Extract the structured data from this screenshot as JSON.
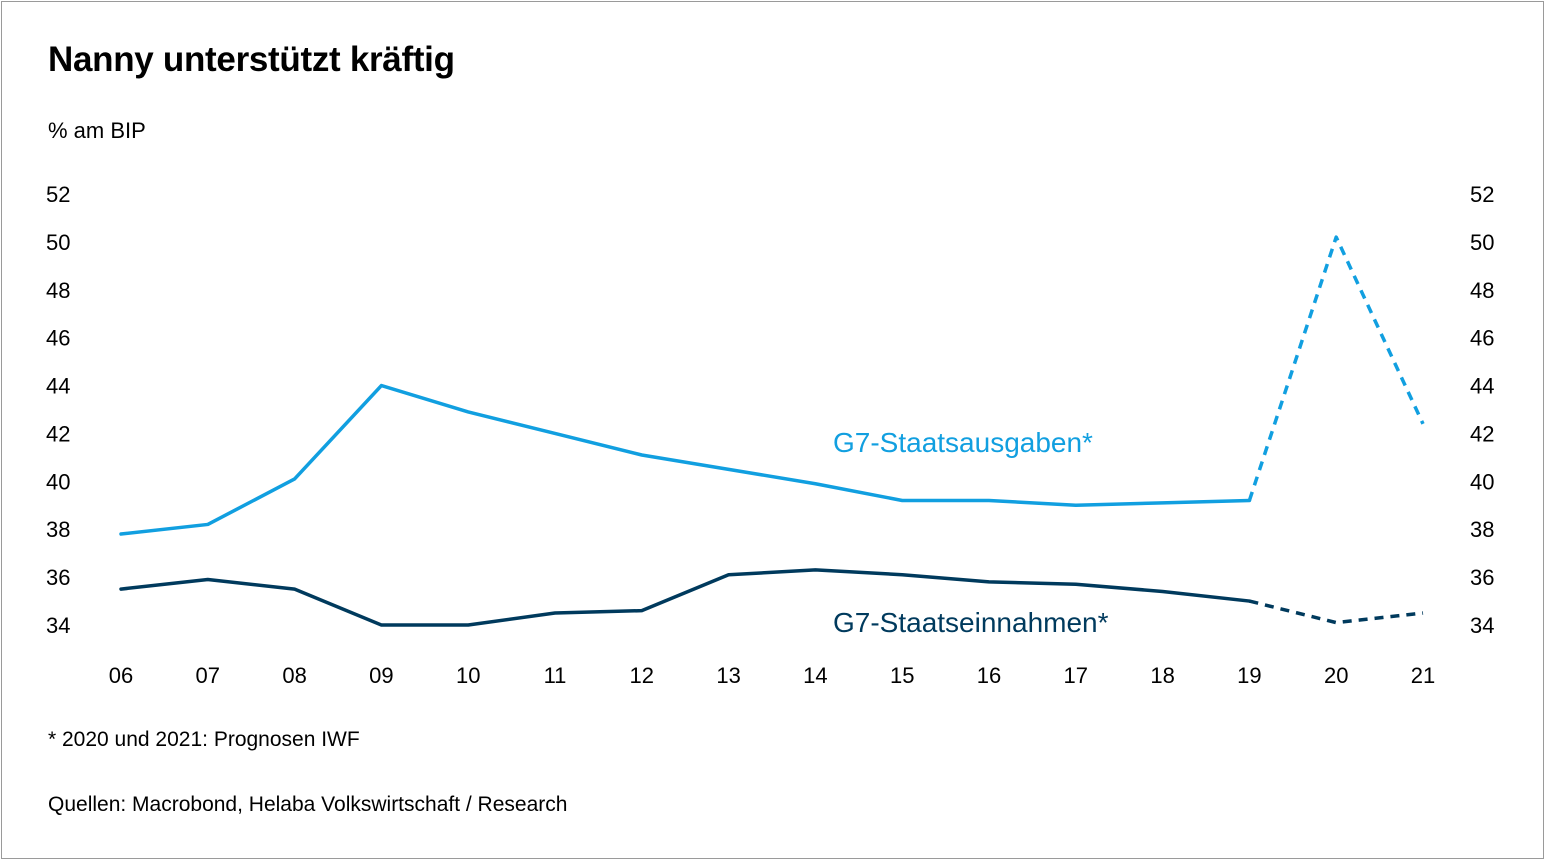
{
  "title": "Nanny unterstützt kräftig",
  "unit_label": "% am BIP",
  "footnote": "* 2020 und 2021: Prognosen IWF",
  "source": "Quellen: Macrobond, Helaba Volkswirtschaft / Research",
  "chart_data": {
    "type": "line",
    "title": "Nanny unterstützt kräftig",
    "ylabel": "% am BIP",
    "xlabel": "",
    "categories": [
      "06",
      "07",
      "08",
      "09",
      "10",
      "11",
      "12",
      "13",
      "14",
      "15",
      "16",
      "17",
      "18",
      "19",
      "20",
      "21"
    ],
    "y_ticks": [
      34,
      36,
      38,
      40,
      42,
      44,
      46,
      48,
      50,
      52
    ],
    "ylim": [
      33,
      53
    ],
    "forecast_from_index": 13,
    "series": [
      {
        "name": "G7-Staatsausgaben*",
        "color": "#119fe0",
        "values": [
          37.8,
          38.2,
          40.1,
          44.0,
          42.9,
          42.0,
          41.1,
          40.5,
          39.9,
          39.2,
          39.2,
          39.0,
          39.1,
          39.2,
          50.2,
          42.4
        ]
      },
      {
        "name": "G7-Staatseinnahmen*",
        "color": "#003a5d",
        "values": [
          35.5,
          35.9,
          35.5,
          34.0,
          34.0,
          34.5,
          34.6,
          36.1,
          36.3,
          36.1,
          35.8,
          35.7,
          35.4,
          35.0,
          34.1,
          34.5
        ]
      }
    ]
  }
}
